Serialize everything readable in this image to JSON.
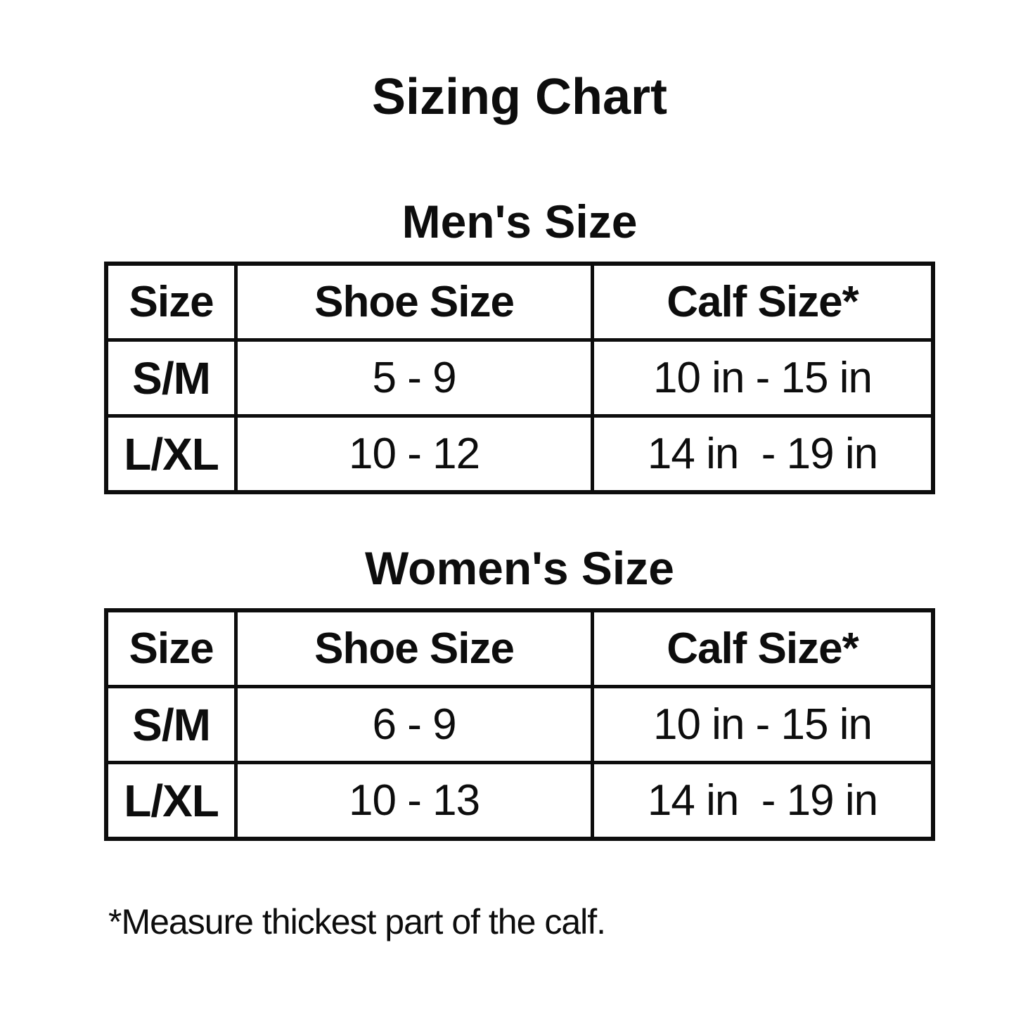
{
  "page": {
    "title": "Sizing Chart",
    "footnote": "*Measure thickest part of the calf."
  },
  "colors": {
    "background": "#ffffff",
    "text": "#0d0d0d",
    "table_border": "#0d0d0d"
  },
  "chart_data": [
    {
      "type": "table",
      "title": "Men's Size",
      "columns": [
        "Size",
        "Shoe Size",
        "Calf Size*"
      ],
      "rows": [
        [
          "S/M",
          "5 - 9",
          "10 in - 15 in"
        ],
        [
          "L/XL",
          "10 - 12",
          "14 in  - 19 in"
        ]
      ]
    },
    {
      "type": "table",
      "title": "Women's Size",
      "columns": [
        "Size",
        "Shoe Size",
        "Calf Size*"
      ],
      "rows": [
        [
          "S/M",
          "6 - 9",
          "10 in - 15 in"
        ],
        [
          "L/XL",
          "10 - 13",
          "14 in  - 19 in"
        ]
      ]
    }
  ]
}
